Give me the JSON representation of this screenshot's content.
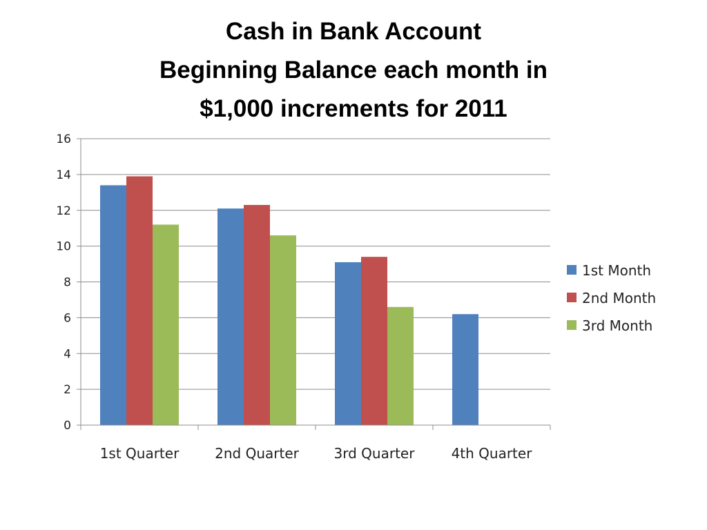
{
  "chart_data": {
    "type": "bar",
    "title_lines": [
      "Cash in Bank Account",
      "Beginning Balance each month in",
      "$1,000 increments for 2011"
    ],
    "categories": [
      "1st Quarter",
      "2nd Quarter",
      "3rd Quarter",
      "4th Quarter"
    ],
    "series": [
      {
        "name": "1st Month",
        "color": "#4F81BD",
        "values": [
          13.4,
          12.1,
          9.1,
          6.2
        ]
      },
      {
        "name": "2nd Month",
        "color": "#C0504D",
        "values": [
          13.9,
          12.3,
          9.4,
          null
        ]
      },
      {
        "name": "3rd Month",
        "color": "#9BBB59",
        "values": [
          11.2,
          10.6,
          6.6,
          null
        ]
      }
    ],
    "ylim": [
      0,
      16
    ],
    "yticks": [
      0,
      2,
      4,
      6,
      8,
      10,
      12,
      14,
      16
    ],
    "grid": true,
    "legend_position": "right"
  }
}
